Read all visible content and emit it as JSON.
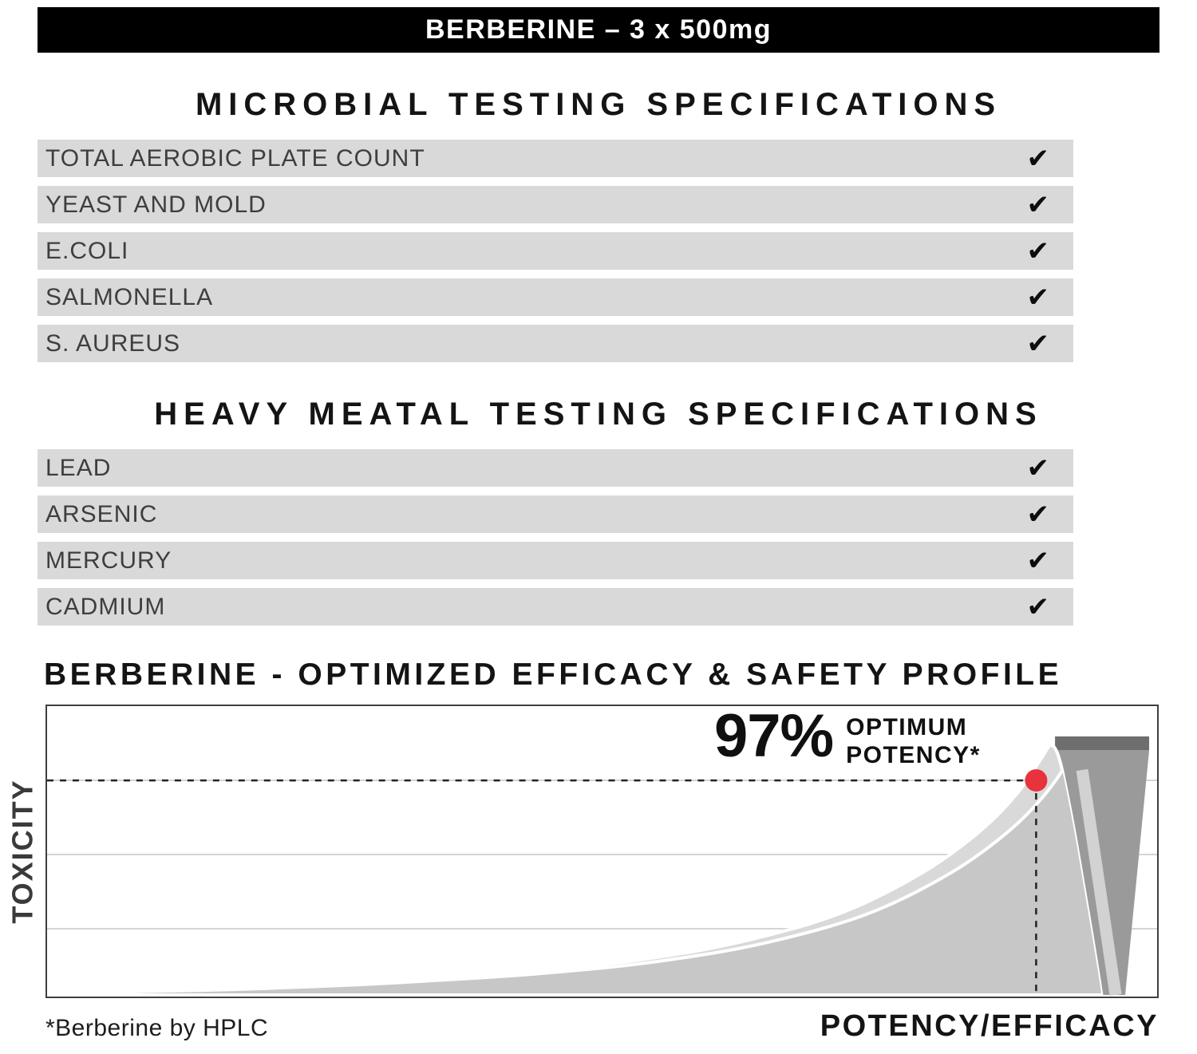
{
  "banner": {
    "title": "BERBERINE – 3 x 500mg"
  },
  "glyphs": {
    "check": "✔"
  },
  "sections": [
    {
      "heading": "MICROBIAL TESTING SPECIFICATIONS",
      "rows": [
        {
          "label": "TOTAL AEROBIC PLATE COUNT",
          "checked": true
        },
        {
          "label": "YEAST AND MOLD",
          "checked": true
        },
        {
          "label": "E.COLI",
          "checked": true
        },
        {
          "label": "SALMONELLA",
          "checked": true
        },
        {
          "label": "S. AUREUS",
          "checked": true
        }
      ]
    },
    {
      "heading": "HEAVY MEATAL TESTING SPECIFICATIONS",
      "rows": [
        {
          "label": "LEAD",
          "checked": true
        },
        {
          "label": "ARSENIC",
          "checked": true
        },
        {
          "label": "MERCURY",
          "checked": true
        },
        {
          "label": "CADMIUM",
          "checked": true
        }
      ]
    }
  ],
  "chart": {
    "heading": "BERBERINE - OPTIMIZED EFFICACY & SAFETY PROFILE",
    "y_axis_label": "TOXICITY",
    "x_axis_label": "POTENCY/EFFICACY",
    "footnote": "*Berberine by HPLC",
    "annotation": {
      "value": "97%",
      "line1": "OPTIMUM",
      "line2": "POTENCY*"
    }
  },
  "chart_data": {
    "type": "area",
    "title": "BERBERINE - OPTIMIZED EFFICACY & SAFETY PROFILE",
    "xlabel": "POTENCY/EFFICACY",
    "ylabel": "TOXICITY",
    "x_range_pct": [
      0,
      100
    ],
    "y_range_pct": [
      0,
      100
    ],
    "tick_labels": "none",
    "grid": "horizontal-lines",
    "legend": "none",
    "series": [
      {
        "name": "toxicity-vs-potency",
        "points": [
          [
            2,
            0
          ],
          [
            2,
            1
          ],
          [
            8,
            1.5
          ],
          [
            14,
            2
          ],
          [
            20,
            3
          ],
          [
            26,
            4
          ],
          [
            32,
            5.5
          ],
          [
            38,
            7
          ],
          [
            44,
            9
          ],
          [
            50,
            11.5
          ],
          [
            55,
            14.5
          ],
          [
            60,
            18
          ],
          [
            65,
            23
          ],
          [
            70,
            29
          ],
          [
            74,
            36
          ],
          [
            78,
            45
          ],
          [
            81,
            53
          ],
          [
            84,
            63
          ],
          [
            86,
            71
          ],
          [
            88,
            81
          ],
          [
            89.5,
            91
          ],
          [
            90.8,
            100
          ],
          [
            92.2,
            72
          ],
          [
            93.4,
            42
          ],
          [
            94.5,
            14
          ],
          [
            95,
            0
          ]
        ]
      }
    ],
    "marker": {
      "x": 89.1,
      "y": 83,
      "label": "97% OPTIMUM POTENCY*",
      "color": "#e8323c"
    },
    "colors": {
      "area_light": "#d9d9d9",
      "area_mid": "#c7c7c7",
      "area_dark": "#9a9a9a",
      "cap_bar": "#6e6e6e"
    }
  }
}
